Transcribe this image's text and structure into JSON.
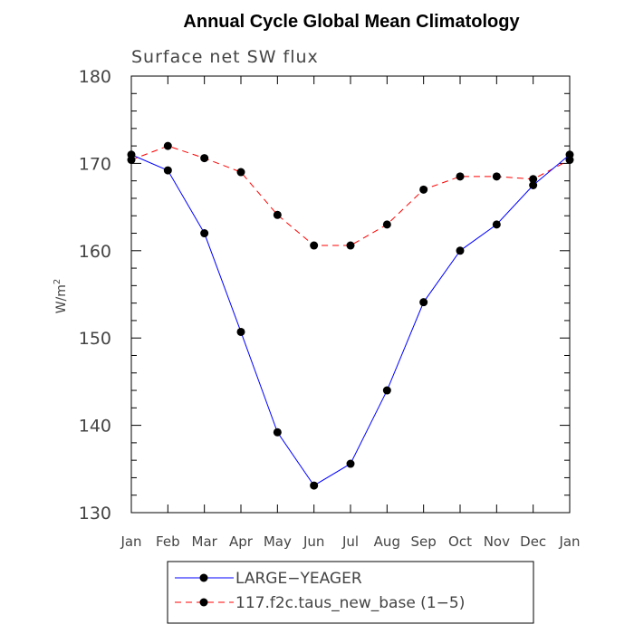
{
  "chart_data": {
    "type": "line",
    "title": "Annual Cycle Global Mean Climatology",
    "subtitle": "Surface net SW flux",
    "ylabel_main": "W/m",
    "ylabel_sup": "2",
    "xlabel": "",
    "categories": [
      "Jan",
      "Feb",
      "Mar",
      "Apr",
      "May",
      "Jun",
      "Jul",
      "Aug",
      "Sep",
      "Oct",
      "Nov",
      "Dec",
      "Jan"
    ],
    "ylim": [
      130,
      180
    ],
    "yticks": [
      130,
      140,
      150,
      160,
      170,
      180
    ],
    "grid": false,
    "legend_position": "bottom",
    "series": [
      {
        "name": "LARGE−YEAGER",
        "color": "#0000ff",
        "dash": "solid",
        "values": [
          171.0,
          169.2,
          162.0,
          150.7,
          139.2,
          133.1,
          135.6,
          144.0,
          154.1,
          160.0,
          163.0,
          167.5,
          171.0
        ]
      },
      {
        "name": "117.f2c.taus_new_base (1−5)",
        "color": "#ff0000",
        "dash": "dashed",
        "values": [
          170.4,
          172.0,
          170.6,
          169.0,
          164.1,
          160.6,
          160.6,
          163.0,
          167.0,
          168.5,
          168.5,
          168.2,
          170.4
        ]
      }
    ]
  }
}
